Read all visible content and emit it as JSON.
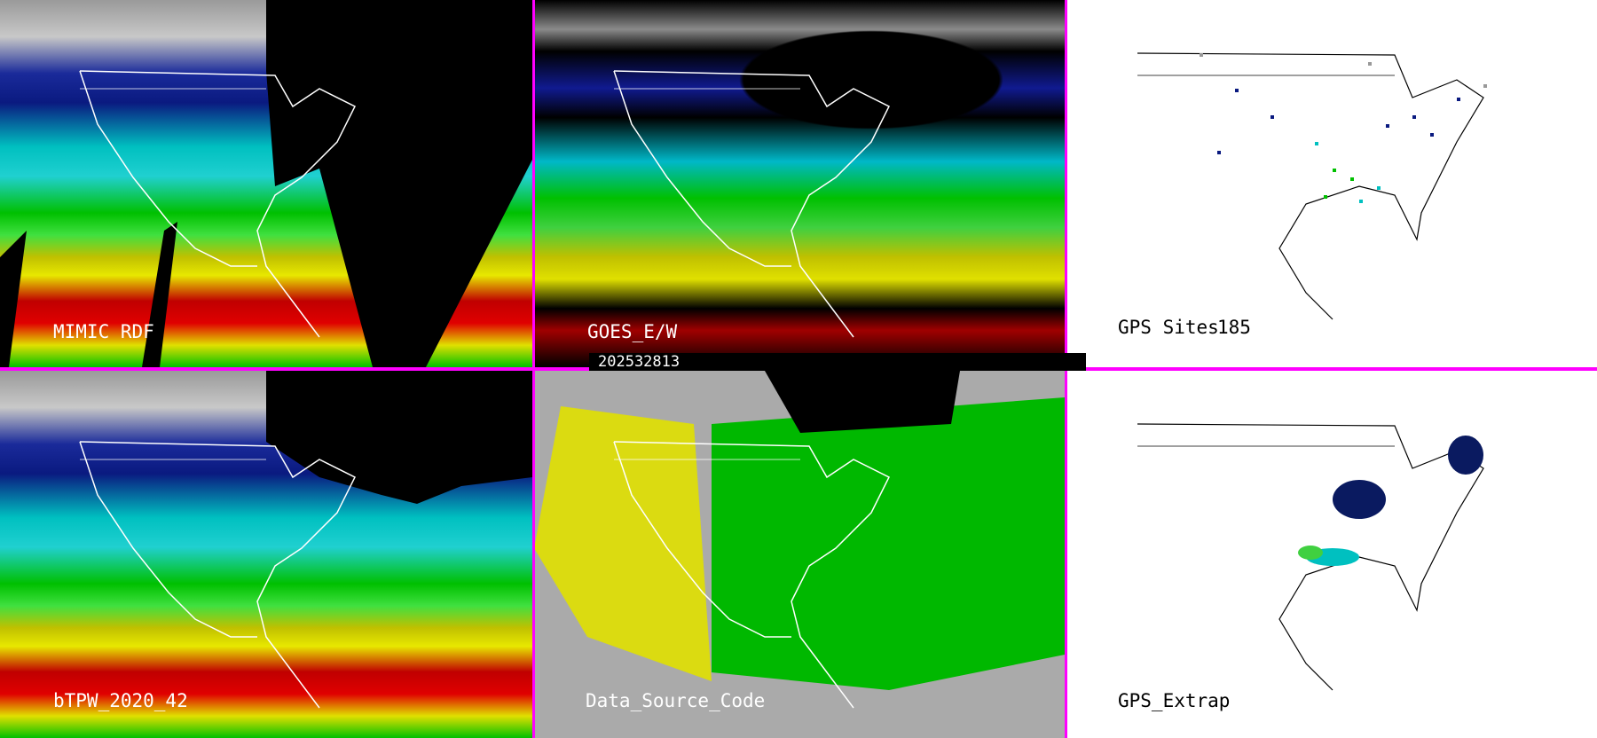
{
  "timestamp": "202532813",
  "colors": {
    "separator": "#ff00ff",
    "map_outline_dark": "#000000",
    "map_outline_light": "#ffffff"
  },
  "panels": [
    {
      "id": "mimic-rdf",
      "label": "MIMIC RDF",
      "style": "satellite"
    },
    {
      "id": "goes-ew",
      "label": "GOES_E/W",
      "style": "satellite"
    },
    {
      "id": "gps-sites",
      "label": "GPS Sites",
      "count": "185",
      "style": "map"
    },
    {
      "id": "btpw",
      "label": "bTPW_2020_42",
      "style": "satellite"
    },
    {
      "id": "data-source-code",
      "label": "Data_Source_Code",
      "style": "categorical"
    },
    {
      "id": "gps-extrap",
      "label": "GPS_Extrap",
      "style": "map"
    }
  ]
}
